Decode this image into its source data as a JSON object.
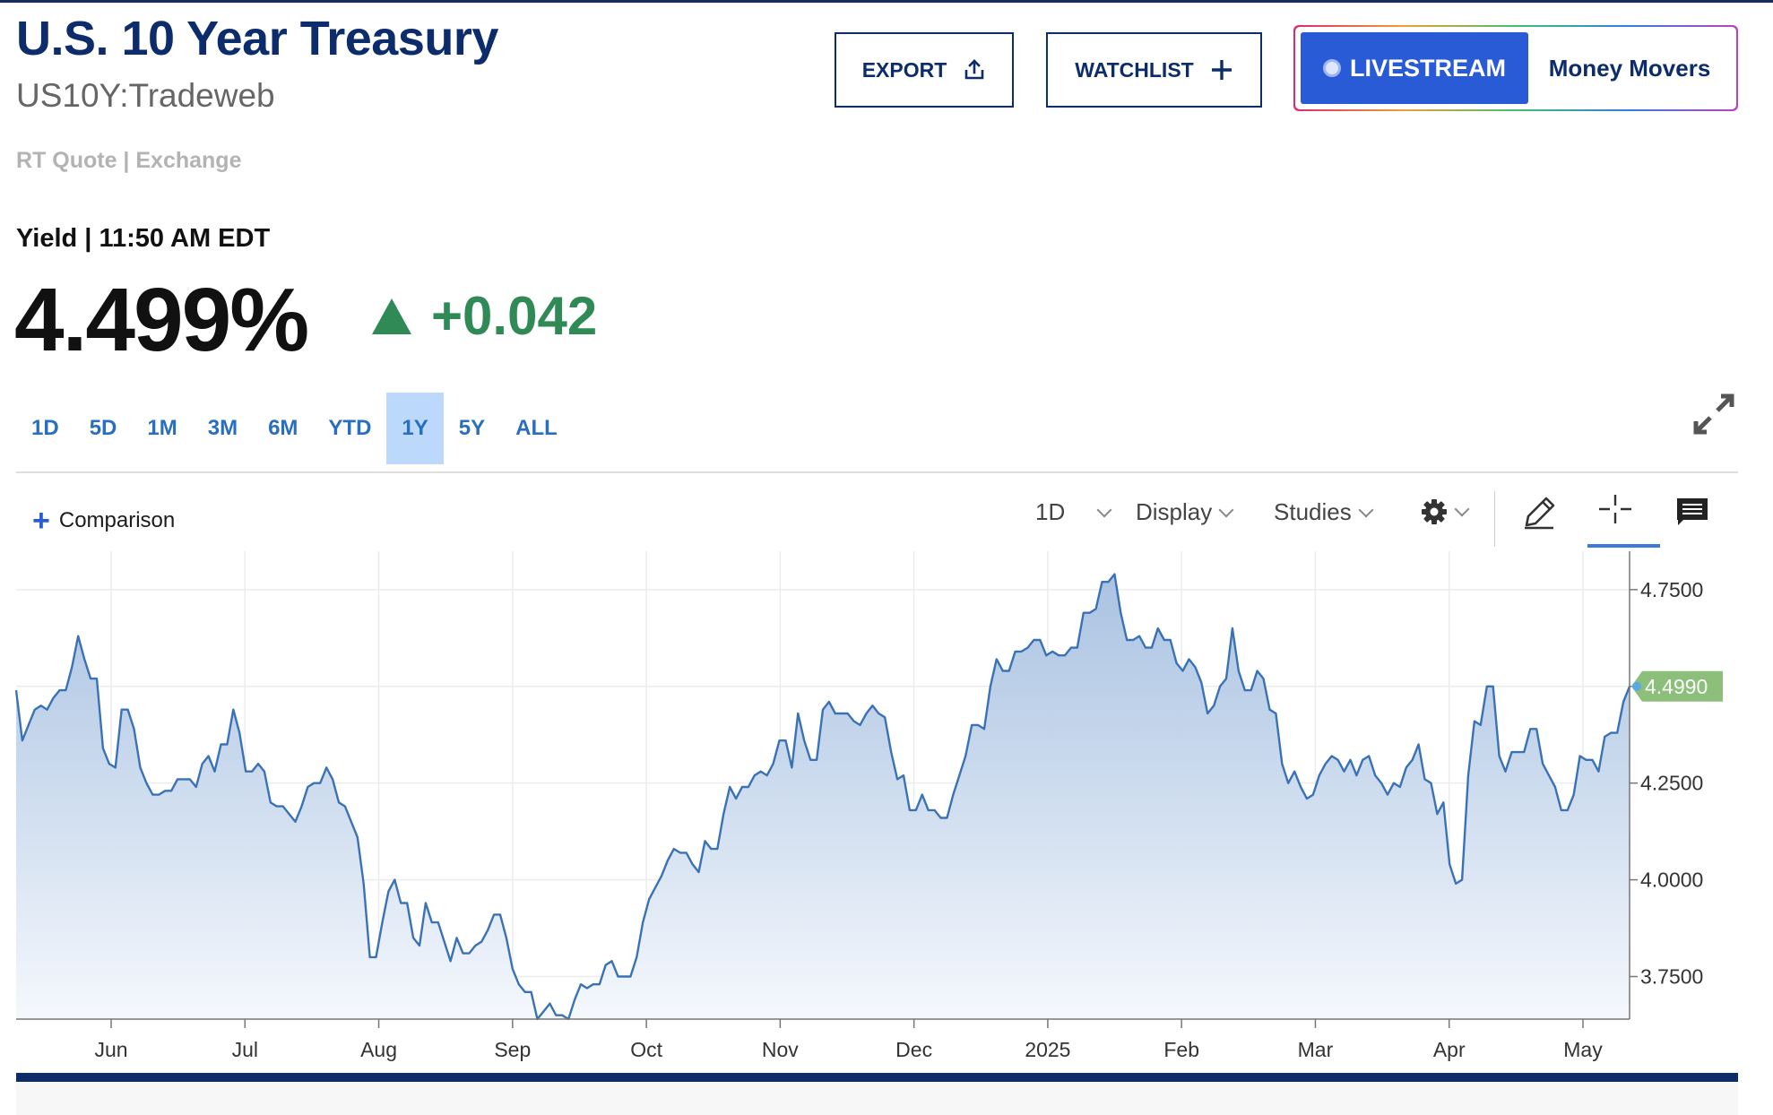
{
  "header": {
    "title": "U.S. 10 Year Treasury",
    "symbol": "US10Y:Tradeweb",
    "quote_source": "RT Quote | Exchange",
    "yield_label": "Yield | 11:50 AM EDT",
    "price": "4.499%",
    "change": "+0.042",
    "change_color": "#2f8a55"
  },
  "actions": {
    "export_label": "EXPORT",
    "watchlist_label": "WATCHLIST",
    "livestream_label": "LIVESTREAM",
    "livestream_show": "Money Movers"
  },
  "ranges": [
    "1D",
    "5D",
    "1M",
    "3M",
    "6M",
    "YTD",
    "1Y",
    "5Y",
    "ALL"
  ],
  "active_range": "1Y",
  "toolbar": {
    "comparison_label": "Comparison",
    "interval": "1D",
    "display": "Display",
    "studies": "Studies"
  },
  "chart_data": {
    "type": "area",
    "title": "",
    "xlabel": "",
    "ylabel": "",
    "x_ticks": [
      "Jun",
      "Jul",
      "Aug",
      "Sep",
      "Oct",
      "Nov",
      "Dec",
      "2025",
      "Feb",
      "Mar",
      "Apr",
      "May"
    ],
    "y_ticks": [
      "4.7500",
      "4.5000",
      "4.2500",
      "4.0000",
      "3.7500"
    ],
    "ylim": [
      3.64,
      4.84
    ],
    "last_value_label": "4.4990",
    "last_value_color": "#8cc07a",
    "line_color": "#3a72b5",
    "grid": true,
    "series": [
      {
        "values": [
          4.49,
          4.36,
          4.4,
          4.44,
          4.45,
          4.44,
          4.47,
          4.49,
          4.49,
          4.55,
          4.63,
          4.57,
          4.52,
          4.52,
          4.34,
          4.3,
          4.29,
          4.44,
          4.44,
          4.39,
          4.29,
          4.25,
          4.22,
          4.22,
          4.23,
          4.23,
          4.26,
          4.26,
          4.26,
          4.24,
          4.3,
          4.32,
          4.28,
          4.35,
          4.35,
          4.44,
          4.38,
          4.28,
          4.28,
          4.3,
          4.28,
          4.2,
          4.19,
          4.19,
          4.17,
          4.15,
          4.19,
          4.24,
          4.25,
          4.25,
          4.29,
          4.26,
          4.2,
          4.19,
          4.15,
          4.11,
          3.99,
          3.8,
          3.8,
          3.89,
          3.97,
          4.0,
          3.94,
          3.94,
          3.85,
          3.83,
          3.94,
          3.89,
          3.89,
          3.84,
          3.79,
          3.85,
          3.81,
          3.81,
          3.83,
          3.84,
          3.87,
          3.91,
          3.91,
          3.85,
          3.77,
          3.73,
          3.71,
          3.71,
          3.64,
          3.66,
          3.68,
          3.65,
          3.65,
          3.64,
          3.69,
          3.73,
          3.72,
          3.73,
          3.73,
          3.78,
          3.79,
          3.75,
          3.75,
          3.75,
          3.8,
          3.89,
          3.95,
          3.98,
          4.01,
          4.05,
          4.08,
          4.07,
          4.07,
          4.04,
          4.02,
          4.1,
          4.08,
          4.08,
          4.17,
          4.24,
          4.21,
          4.24,
          4.24,
          4.27,
          4.28,
          4.27,
          4.3,
          4.36,
          4.36,
          4.29,
          4.43,
          4.36,
          4.31,
          4.31,
          4.44,
          4.46,
          4.43,
          4.43,
          4.43,
          4.41,
          4.4,
          4.43,
          4.45,
          4.43,
          4.42,
          4.33,
          4.26,
          4.27,
          4.18,
          4.18,
          4.22,
          4.18,
          4.18,
          4.16,
          4.16,
          4.22,
          4.27,
          4.32,
          4.4,
          4.4,
          4.39,
          4.5,
          4.57,
          4.54,
          4.54,
          4.59,
          4.59,
          4.6,
          4.62,
          4.62,
          4.58,
          4.59,
          4.58,
          4.58,
          4.6,
          4.6,
          4.69,
          4.69,
          4.7,
          4.77,
          4.77,
          4.79,
          4.69,
          4.62,
          4.62,
          4.63,
          4.6,
          4.6,
          4.65,
          4.62,
          4.62,
          4.56,
          4.54,
          4.57,
          4.55,
          4.51,
          4.43,
          4.45,
          4.5,
          4.52,
          4.65,
          4.54,
          4.49,
          4.49,
          4.54,
          4.52,
          4.44,
          4.43,
          4.3,
          4.25,
          4.28,
          4.24,
          4.21,
          4.22,
          4.27,
          4.3,
          4.32,
          4.31,
          4.28,
          4.31,
          4.27,
          4.31,
          4.32,
          4.27,
          4.25,
          4.22,
          4.25,
          4.24,
          4.29,
          4.31,
          4.35,
          4.26,
          4.25,
          4.17,
          4.2,
          4.04,
          3.99,
          4.0,
          4.27,
          4.41,
          4.4,
          4.5,
          4.5,
          4.32,
          4.28,
          4.33,
          4.33,
          4.33,
          4.39,
          4.39,
          4.3,
          4.27,
          4.24,
          4.18,
          4.18,
          4.22,
          4.32,
          4.31,
          4.31,
          4.28,
          4.37,
          4.38,
          4.38,
          4.46,
          4.5
        ]
      }
    ]
  }
}
